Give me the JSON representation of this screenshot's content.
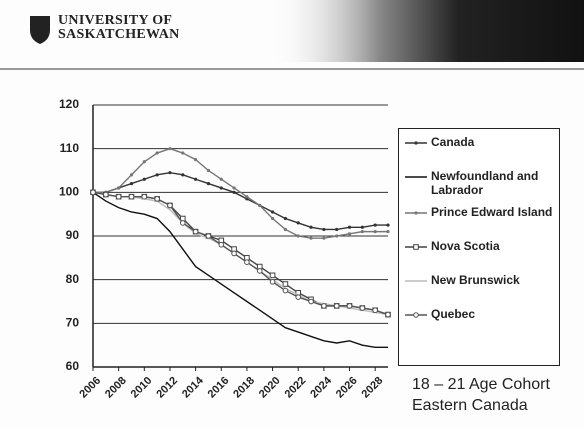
{
  "header": {
    "line1": "UNIVERSITY OF",
    "line2": "SASKATCHEWAN"
  },
  "chart_data": {
    "type": "line",
    "x": [
      2006,
      2007,
      2008,
      2009,
      2010,
      2011,
      2012,
      2013,
      2014,
      2015,
      2016,
      2017,
      2018,
      2019,
      2020,
      2021,
      2022,
      2023,
      2024,
      2025,
      2026,
      2027,
      2028,
      2029
    ],
    "xlim": [
      2006,
      2029
    ],
    "xticks": [
      2006,
      2008,
      2010,
      2012,
      2014,
      2016,
      2018,
      2020,
      2022,
      2024,
      2026,
      2028
    ],
    "ylim": [
      60,
      120
    ],
    "yticks": [
      60,
      70,
      80,
      90,
      100,
      110,
      120
    ],
    "grid": true,
    "annotation": [
      "18 – 21 Age Cohort",
      "Eastern Canada"
    ],
    "series": [
      {
        "name": "Canada",
        "color": "#333333",
        "marker": "dot",
        "values": [
          100,
          100,
          101,
          102,
          103,
          104,
          104.5,
          104,
          103,
          102,
          101,
          100,
          98.5,
          97,
          95.5,
          94,
          93,
          92,
          91.5,
          91.5,
          92,
          92,
          92.5,
          92.5
        ]
      },
      {
        "name": "Newfoundland and Labrador",
        "color": "#111111",
        "marker": "none",
        "values": [
          100,
          98,
          96.5,
          95.5,
          95,
          94,
          91,
          87,
          83,
          81,
          79,
          77,
          75,
          73,
          71,
          69,
          68,
          67,
          66,
          65.5,
          66,
          65,
          64.5,
          64.5
        ]
      },
      {
        "name": "Prince Edward Island",
        "color": "#777777",
        "marker": "dot",
        "values": [
          100,
          100,
          101,
          104,
          107,
          109,
          110,
          109,
          107.5,
          105,
          103,
          101,
          99,
          97,
          94,
          91.5,
          90,
          89.5,
          89.5,
          90,
          90.5,
          91,
          91,
          91
        ]
      },
      {
        "name": "Nova Scotia",
        "color": "#444444",
        "marker": "square",
        "values": [
          100,
          99.5,
          99,
          99,
          99,
          98.5,
          97,
          94,
          91,
          90,
          89,
          87,
          85,
          83,
          81,
          79,
          77,
          75.5,
          74,
          74,
          74,
          73.5,
          73,
          72
        ]
      },
      {
        "name": "New Brunswick",
        "color": "#bbbbbb",
        "marker": "none",
        "values": [
          100,
          99.5,
          99,
          99,
          98.5,
          98,
          96,
          93,
          90.5,
          89.5,
          88,
          86,
          84,
          82,
          80,
          78,
          76.5,
          75,
          74.5,
          74,
          73.5,
          73,
          72.5,
          72
        ]
      },
      {
        "name": "Quebec",
        "color": "#555555",
        "marker": "circle",
        "values": [
          100,
          99.5,
          99,
          99,
          99,
          98.5,
          97,
          93,
          91,
          90,
          88,
          86,
          84,
          82,
          79.5,
          77.5,
          76,
          75,
          74,
          74,
          74,
          73.5,
          73,
          72
        ]
      }
    ]
  }
}
